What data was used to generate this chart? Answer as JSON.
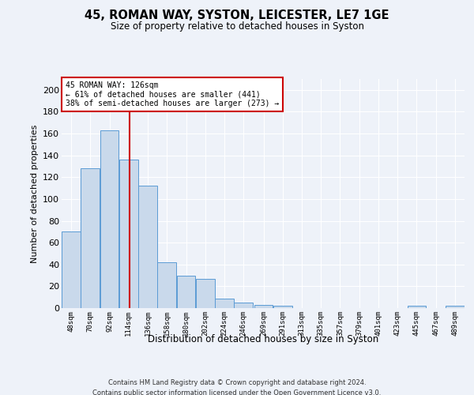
{
  "title_line1": "45, ROMAN WAY, SYSTON, LEICESTER, LE7 1GE",
  "title_line2": "Size of property relative to detached houses in Syston",
  "xlabel": "Distribution of detached houses by size in Syston",
  "ylabel": "Number of detached properties",
  "bar_color": "#c9d9eb",
  "bar_edge_color": "#5b9bd5",
  "vline_color": "#cc0000",
  "vline_x": 126,
  "categories": [
    "48sqm",
    "70sqm",
    "92sqm",
    "114sqm",
    "136sqm",
    "158sqm",
    "180sqm",
    "202sqm",
    "224sqm",
    "246sqm",
    "269sqm",
    "291sqm",
    "313sqm",
    "335sqm",
    "357sqm",
    "379sqm",
    "401sqm",
    "423sqm",
    "445sqm",
    "467sqm",
    "489sqm"
  ],
  "values": [
    70,
    128,
    163,
    136,
    112,
    42,
    30,
    27,
    9,
    5,
    3,
    2,
    0,
    0,
    0,
    0,
    0,
    0,
    2,
    0,
    2
  ],
  "bin_edges_sqm": [
    48,
    70,
    92,
    114,
    136,
    158,
    180,
    202,
    224,
    246,
    269,
    291,
    313,
    335,
    357,
    379,
    401,
    423,
    445,
    467,
    489,
    511
  ],
  "ylim": [
    0,
    210
  ],
  "yticks": [
    0,
    20,
    40,
    60,
    80,
    100,
    120,
    140,
    160,
    180,
    200
  ],
  "annotation_text": "45 ROMAN WAY: 126sqm\n← 61% of detached houses are smaller (441)\n38% of semi-detached houses are larger (273) →",
  "annotation_box_color": "#ffffff",
  "annotation_box_edge": "#cc0000",
  "footer_line1": "Contains HM Land Registry data © Crown copyright and database right 2024.",
  "footer_line2": "Contains public sector information licensed under the Open Government Licence v3.0.",
  "background_color": "#eef2f9",
  "grid_color": "#ffffff"
}
